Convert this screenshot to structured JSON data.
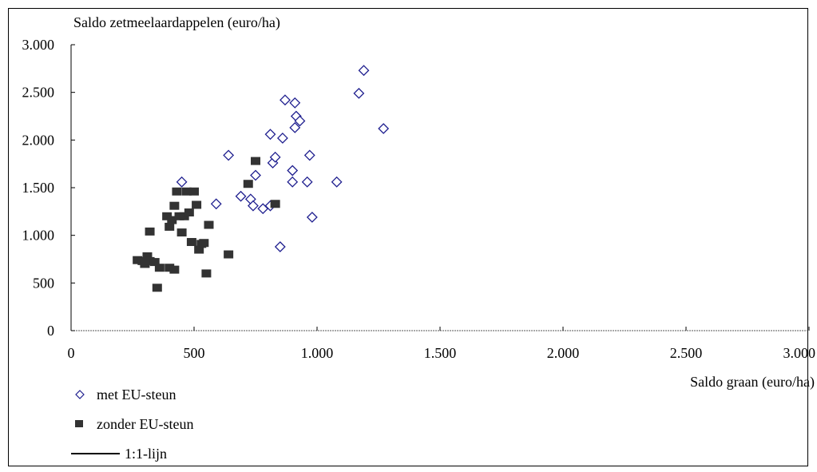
{
  "chart_data": {
    "type": "scatter",
    "ylabel": "Saldo zetmeelaardappelen (euro/ha)",
    "xlabel": "Saldo graan (euro/ha)",
    "xlim": [
      0,
      3000
    ],
    "ylim": [
      0,
      3000
    ],
    "x_ticks": [
      0,
      500,
      1000,
      1500,
      2000,
      2500,
      3000
    ],
    "y_ticks": [
      0,
      500,
      1000,
      1500,
      2000,
      2500,
      3000
    ],
    "x_tick_labels": [
      "0",
      "500",
      "1.000",
      "1.500",
      "2.000",
      "2.500",
      "3.000"
    ],
    "y_tick_labels": [
      "0",
      "500",
      "1.000",
      "1.500",
      "2.000",
      "2.500",
      "3.000"
    ],
    "grid": false,
    "legend_position": "bottom-left",
    "legend": [
      "met EU-steun",
      "zonder EU-steun",
      "1:1-lijn"
    ],
    "series": [
      {
        "name": "met EU-steun",
        "marker": "diamond-open",
        "color": "#1f1f8f",
        "points": [
          [
            450,
            1560
          ],
          [
            590,
            1330
          ],
          [
            640,
            1840
          ],
          [
            690,
            1410
          ],
          [
            730,
            1380
          ],
          [
            750,
            1630
          ],
          [
            740,
            1310
          ],
          [
            780,
            1280
          ],
          [
            810,
            1310
          ],
          [
            810,
            2060
          ],
          [
            820,
            1760
          ],
          [
            830,
            1820
          ],
          [
            850,
            880
          ],
          [
            860,
            2020
          ],
          [
            870,
            2420
          ],
          [
            900,
            1680
          ],
          [
            900,
            1560
          ],
          [
            910,
            2390
          ],
          [
            910,
            2130
          ],
          [
            915,
            2250
          ],
          [
            930,
            2200
          ],
          [
            960,
            1560
          ],
          [
            970,
            1840
          ],
          [
            980,
            1190
          ],
          [
            1080,
            1560
          ],
          [
            1170,
            2490
          ],
          [
            1190,
            2730
          ],
          [
            1270,
            2120
          ]
        ]
      },
      {
        "name": "zonder EU-steun",
        "marker": "square-filled",
        "color": "#333333",
        "points": [
          [
            270,
            740
          ],
          [
            290,
            730
          ],
          [
            300,
            700
          ],
          [
            310,
            780
          ],
          [
            320,
            730
          ],
          [
            320,
            1040
          ],
          [
            340,
            720
          ],
          [
            350,
            450
          ],
          [
            360,
            660
          ],
          [
            390,
            1200
          ],
          [
            400,
            660
          ],
          [
            400,
            1090
          ],
          [
            410,
            1160
          ],
          [
            420,
            1310
          ],
          [
            420,
            640
          ],
          [
            430,
            1460
          ],
          [
            440,
            1200
          ],
          [
            450,
            1030
          ],
          [
            460,
            1200
          ],
          [
            470,
            1460
          ],
          [
            480,
            1240
          ],
          [
            490,
            930
          ],
          [
            500,
            1460
          ],
          [
            510,
            1320
          ],
          [
            520,
            850
          ],
          [
            530,
            910
          ],
          [
            540,
            920
          ],
          [
            550,
            600
          ],
          [
            560,
            1110
          ],
          [
            640,
            800
          ],
          [
            720,
            1540
          ],
          [
            750,
            1780
          ],
          [
            830,
            1330
          ]
        ]
      }
    ],
    "one_to_one_line": {
      "name": "1:1-lijn",
      "color": "#000000"
    }
  }
}
